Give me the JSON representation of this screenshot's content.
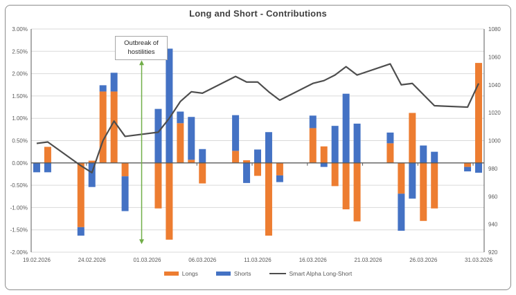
{
  "title": "Long and Short - Contributions",
  "annotation": {
    "line1": "Outbreak of",
    "line2": "hostilities"
  },
  "colors": {
    "longs": "#ED7D31",
    "shorts": "#4472C4",
    "alpha_line": "#4D4D4D",
    "arrow": "#70AD47",
    "grid": "#D9D9D9",
    "axis": "#595959",
    "axis_text": "#595959",
    "title_text": "#404040"
  },
  "legend": {
    "items": [
      {
        "label": "Longs",
        "swatch": "bar",
        "color": "#ED7D31"
      },
      {
        "label": "Shorts",
        "swatch": "bar",
        "color": "#4472C4"
      },
      {
        "label": "Smart Alpha Long-Short",
        "swatch": "line",
        "color": "#4D4D4D"
      }
    ]
  },
  "chart_data": {
    "type": "bar",
    "subtype": "stacked-columns-with-line",
    "title": "Long and Short - Contributions",
    "categories": [
      "19.02.2026",
      "20.02.2026",
      "23.02.2026",
      "24.02.2026",
      "25.02.2026",
      "26.02.2026",
      "27.02.2026",
      "02.03.2026",
      "03.03.2026",
      "04.03.2026",
      "05.03.2026",
      "06.03.2026",
      "09.03.2026",
      "10.03.2026",
      "11.03.2026",
      "12.03.2026",
      "13.03.2026",
      "16.03.2026",
      "17.03.2026",
      "18.03.2026",
      "19.03.2026",
      "20.03.2026",
      "23.03.2026",
      "24.03.2026",
      "25.03.2026",
      "26.03.2026",
      "27.03.2026",
      "30.03.2026",
      "31.03.2026"
    ],
    "day_offsets": [
      0,
      1,
      4,
      5,
      6,
      7,
      8,
      11,
      12,
      13,
      14,
      15,
      18,
      19,
      20,
      21,
      22,
      25,
      26,
      27,
      28,
      29,
      32,
      33,
      34,
      35,
      36,
      39,
      40
    ],
    "series": [
      {
        "name": "Longs",
        "type": "bar",
        "axis": "left",
        "color": "#ED7D31",
        "values": [
          0.0,
          0.36,
          -1.44,
          0.05,
          1.6,
          1.6,
          -0.3,
          -1.02,
          -1.72,
          0.89,
          0.07,
          -0.46,
          0.27,
          0.06,
          -0.29,
          -1.63,
          -0.28,
          0.78,
          0.37,
          -0.52,
          -1.04,
          -1.31,
          0.44,
          -0.69,
          1.12,
          -1.3,
          -1.02,
          -0.09,
          2.24
        ]
      },
      {
        "name": "Shorts",
        "type": "bar",
        "axis": "left",
        "color": "#4472C4",
        "values": [
          -0.21,
          -0.21,
          -0.19,
          -0.54,
          0.14,
          0.42,
          -0.78,
          1.21,
          2.56,
          0.26,
          0.96,
          0.31,
          0.8,
          -0.45,
          0.3,
          0.69,
          -0.15,
          0.28,
          -0.09,
          0.83,
          1.55,
          0.88,
          0.24,
          -0.83,
          -0.8,
          0.39,
          0.25,
          -0.1,
          -0.22
        ]
      },
      {
        "name": "Smart Alpha Long-Short",
        "type": "line",
        "axis": "right",
        "color": "#4D4D4D",
        "values": [
          998,
          999,
          982,
          977,
          1000,
          1014,
          1003,
          1006,
          1016,
          1028,
          1035,
          1034,
          1046,
          1042,
          1042,
          1035,
          1029,
          1041,
          1043,
          1047,
          1053,
          1047,
          1055,
          1040,
          1041,
          1033,
          1025,
          1024,
          1041
        ]
      }
    ],
    "left_axis": {
      "min": -2,
      "max": 3,
      "step": 0.5,
      "format": "percent",
      "tick_labels": [
        "3.00%",
        "2.50%",
        "2.00%",
        "1.50%",
        "1.00%",
        "0.50%",
        "0.00%",
        "-0.50%",
        "-1.00%",
        "-1.50%",
        "-2.00%"
      ]
    },
    "right_axis": {
      "min": 920,
      "max": 1080,
      "step": 20,
      "tick_labels": [
        "1080",
        "1060",
        "1040",
        "1020",
        "1000",
        "980",
        "960",
        "940",
        "920"
      ]
    },
    "x_axis": {
      "span_days": 41,
      "tick_labels": [
        "19.02.2026",
        "24.02.2026",
        "01.03.2026",
        "06.03.2026",
        "11.03.2026",
        "16.03.2026",
        "21.03.2026",
        "26.03.2026",
        "31.03.2026"
      ],
      "tick_offsets": [
        0,
        5,
        10,
        15,
        20,
        25,
        30,
        35,
        40
      ]
    },
    "annotation_arrow": {
      "day_offset": 9.5,
      "top_pct": 2.3,
      "bottom_pct": -1.82
    },
    "legend_position": "bottom",
    "grid": true
  }
}
